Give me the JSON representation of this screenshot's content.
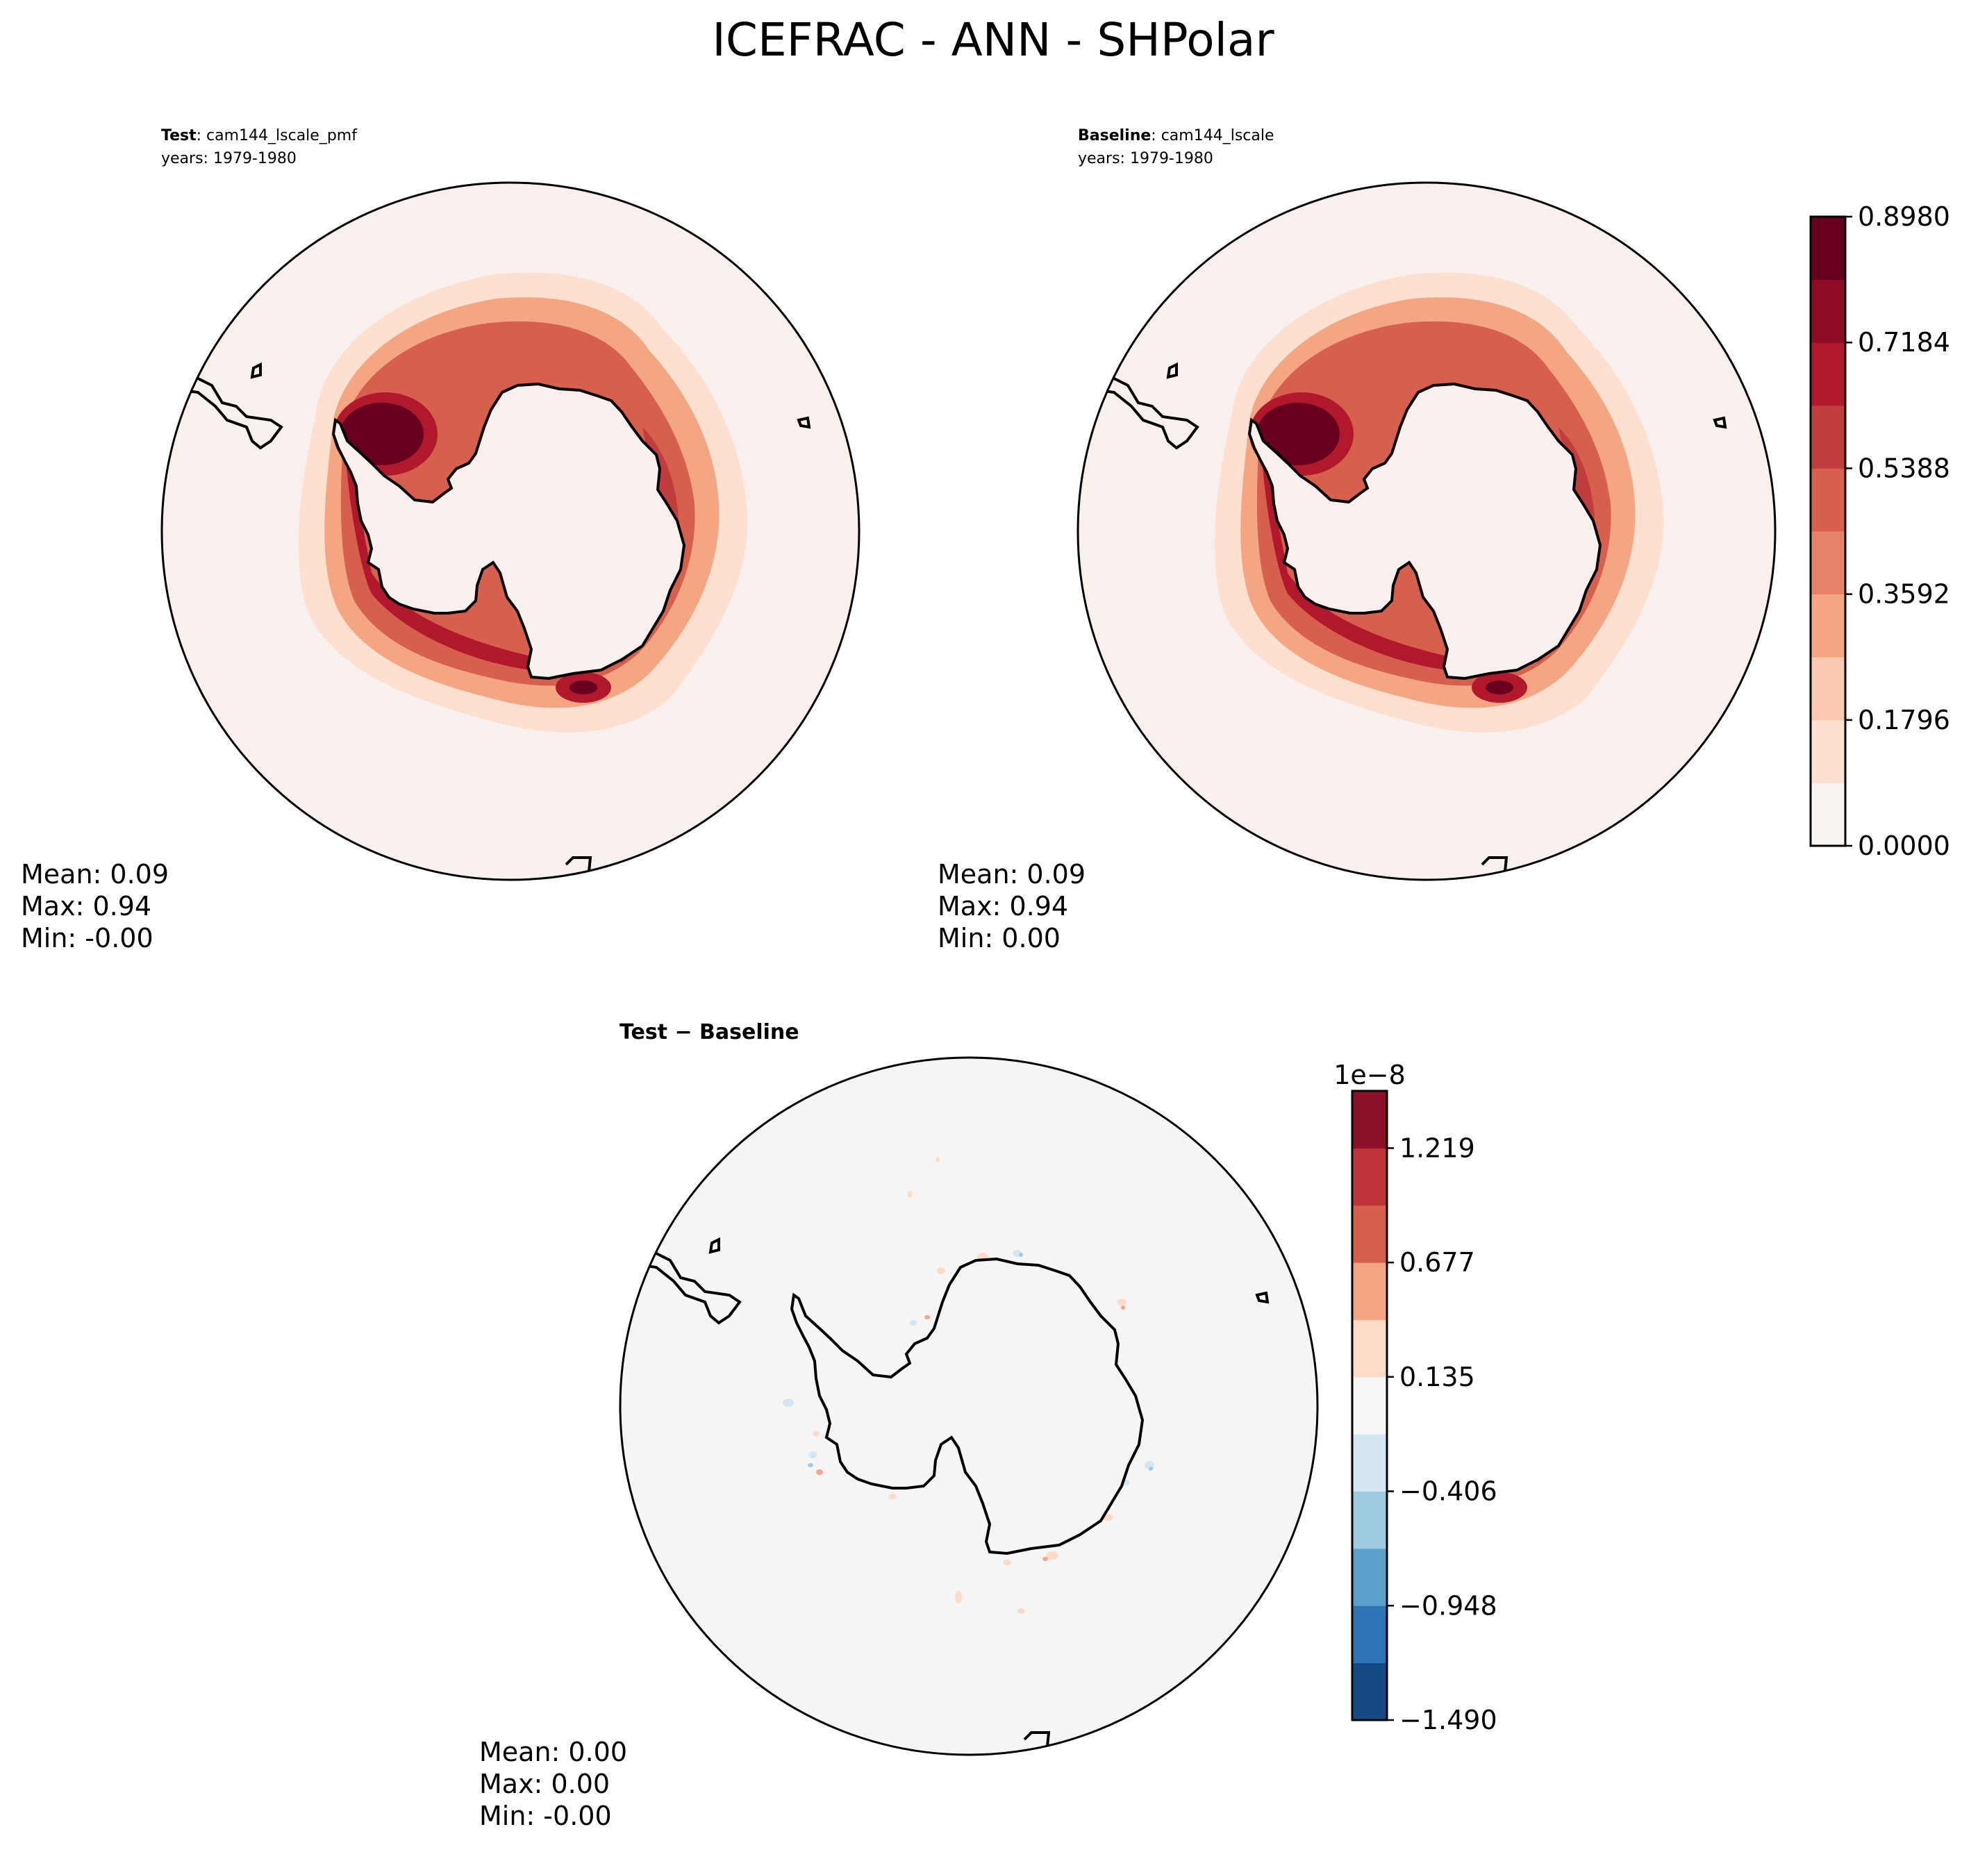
{
  "figure": {
    "title": "ICEFRAC - ANN - SHPolar"
  },
  "panels": {
    "test": {
      "label_bold": "Test",
      "label_rest": ": cam144_lscale_pmf",
      "years": "years: 1979-1980",
      "stats": [
        "Mean:  0.09",
        "Max:  0.94",
        "Min: -0.00"
      ]
    },
    "baseline": {
      "label_bold": "Baseline",
      "label_rest": ": cam144_lscale",
      "years": "years: 1979-1980",
      "stats": [
        "Mean:  0.09",
        "Max:  0.94",
        "Min:  0.00"
      ]
    },
    "diff": {
      "title": "Test − Baseline",
      "stats": [
        "Mean:  0.00",
        "Max:  0.00",
        "Min: -0.00"
      ]
    }
  },
  "colorbars": {
    "main": {
      "colors": [
        "#f7f4f2",
        "#fde0d0",
        "#fbc8b0",
        "#f4a582",
        "#e58267",
        "#d6604d",
        "#c13d3d",
        "#b2182b",
        "#8e0b24",
        "#67001f"
      ],
      "ticks": [
        "0.0000",
        "0.1796",
        "0.3592",
        "0.5388",
        "0.7184",
        "0.8980"
      ]
    },
    "diff": {
      "exponent": "1e−8",
      "colors": [
        "#144b86",
        "#2c74b4",
        "#5aa2cc",
        "#9dcbe1",
        "#d3e6f1",
        "#f7f7f7",
        "#fddbc7",
        "#f4a582",
        "#d6604d",
        "#c0343b",
        "#8b1128"
      ],
      "ticks": [
        "−1.490",
        "−0.948",
        "−0.406",
        "0.135",
        "0.677",
        "1.219"
      ]
    }
  },
  "chart_data": [
    {
      "type": "heatmap",
      "title": "Test : cam144_lscale_pmf",
      "subtitle": "years: 1979-1980",
      "projection": "south polar stereographic",
      "variable": "ICEFRAC",
      "stats": {
        "mean": 0.09,
        "max": 0.94,
        "min": -0.0
      },
      "colorbar_levels": [
        0.0,
        0.1796,
        0.3592,
        0.5388,
        0.7184,
        0.898
      ]
    },
    {
      "type": "heatmap",
      "title": "Baseline : cam144_lscale",
      "subtitle": "years: 1979-1980",
      "projection": "south polar stereographic",
      "variable": "ICEFRAC",
      "stats": {
        "mean": 0.09,
        "max": 0.94,
        "min": 0.0
      },
      "colorbar_levels": [
        0.0,
        0.1796,
        0.3592,
        0.5388,
        0.7184,
        0.898
      ]
    },
    {
      "type": "heatmap",
      "title": "Test − Baseline",
      "projection": "south polar stereographic",
      "variable": "ICEFRAC",
      "stats": {
        "mean": 0.0,
        "max": 0.0,
        "min": -0.0
      },
      "colorbar_scale": "1e-8",
      "colorbar_levels": [
        -1.49,
        -0.948,
        -0.406,
        0.135,
        0.677,
        1.219
      ]
    }
  ]
}
